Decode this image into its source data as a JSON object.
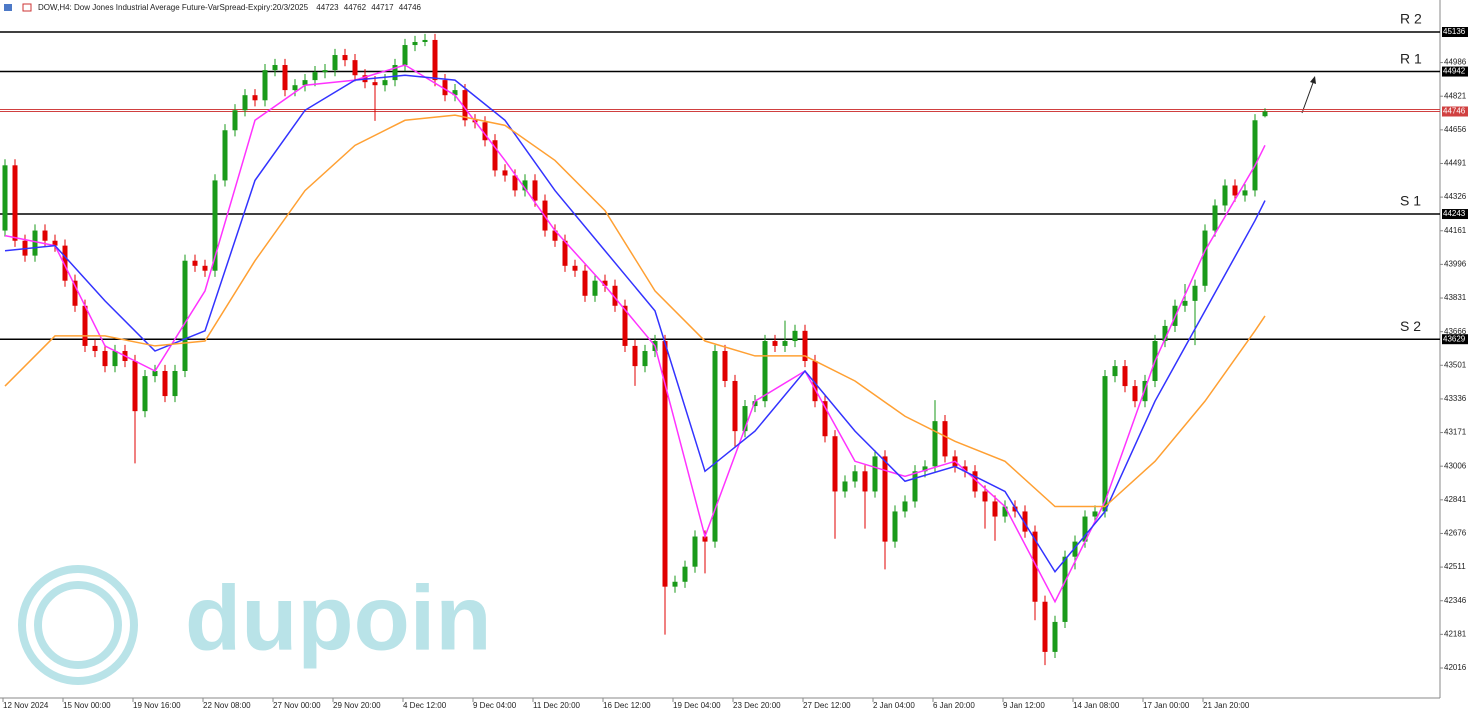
{
  "chart_data": {
    "type": "candlestick",
    "title": "DOW,H4:  Dow Jones Industrial Average Future-VarSpread-Expiry:20/3/2025",
    "watermark": "dupoin",
    "up_color": "#1a9a1a",
    "down_color": "#e00000",
    "ylim": [
      41859,
      45293
    ],
    "yticks": [
      44986,
      44821,
      44656,
      44491,
      44326,
      44161,
      43996,
      43831,
      43666,
      43501,
      43336,
      43171,
      43006,
      42841,
      42676,
      42511,
      42346,
      42181,
      42016
    ],
    "xticks": [
      {
        "value": 0,
        "label": "12 Nov 2024"
      },
      {
        "value": 6,
        "label": "15 Nov 00:00"
      },
      {
        "value": 13,
        "label": "19 Nov 16:00"
      },
      {
        "value": 20,
        "label": "22 Nov 08:00"
      },
      {
        "value": 27,
        "label": "27 Nov 00:00"
      },
      {
        "value": 33,
        "label": "29 Nov 20:00"
      },
      {
        "value": 40,
        "label": "4 Dec 12:00"
      },
      {
        "value": 47,
        "label": "9 Dec 04:00"
      },
      {
        "value": 53,
        "label": "11 Dec 20:00"
      },
      {
        "value": 60,
        "label": "16 Dec 12:00"
      },
      {
        "value": 67,
        "label": "19 Dec 04:00"
      },
      {
        "value": 73,
        "label": "23 Dec 20:00"
      },
      {
        "value": 80,
        "label": "27 Dec 12:00"
      },
      {
        "value": 87,
        "label": "2 Jan 04:00"
      },
      {
        "value": 93,
        "label": "6 Jan 20:00"
      },
      {
        "value": 100,
        "label": "9 Jan 12:00"
      },
      {
        "value": 107,
        "label": "14 Jan 08:00"
      },
      {
        "value": 114,
        "label": "17 Jan 00:00"
      },
      {
        "value": 120,
        "label": "21 Jan 20:00"
      }
    ],
    "levels": [
      {
        "name": "R 2",
        "value": 45136
      },
      {
        "name": "R 1",
        "value": 44942
      },
      {
        "name": "S 1",
        "value": 44243
      },
      {
        "name": "S 2",
        "value": 43629
      }
    ],
    "level_color": "#000000",
    "price_line_color": "#d04040",
    "candles": [
      [
        44162,
        44512,
        44132,
        44482
      ],
      [
        44482,
        44512,
        44082,
        44112
      ],
      [
        44112,
        44142,
        44009,
        44039
      ],
      [
        44039,
        44192,
        44009,
        44162
      ],
      [
        44162,
        44192,
        44082,
        44112
      ],
      [
        44112,
        44142,
        44058,
        44088
      ],
      [
        44088,
        44118,
        43886,
        43916
      ],
      [
        43916,
        43946,
        43763,
        43793
      ],
      [
        43793,
        43823,
        43566,
        43596
      ],
      [
        43596,
        43626,
        43541,
        43571
      ],
      [
        43571,
        43601,
        43467,
        43497
      ],
      [
        43497,
        43601,
        43467,
        43571
      ],
      [
        43571,
        43601,
        43492,
        43522
      ],
      [
        43522,
        43552,
        43020,
        43276
      ],
      [
        43276,
        43478,
        43246,
        43448
      ],
      [
        43448,
        43503,
        43418,
        43473
      ],
      [
        43473,
        43503,
        43320,
        43350
      ],
      [
        43350,
        43503,
        43320,
        43473
      ],
      [
        43473,
        44044,
        43443,
        44014
      ],
      [
        44014,
        44044,
        43959,
        43989
      ],
      [
        43989,
        44019,
        43935,
        43965
      ],
      [
        43965,
        44438,
        43935,
        44408
      ],
      [
        44408,
        44684,
        44378,
        44654
      ],
      [
        44654,
        44782,
        44624,
        44752
      ],
      [
        44752,
        44856,
        44722,
        44826
      ],
      [
        44826,
        44856,
        44771,
        44801
      ],
      [
        44801,
        44979,
        44771,
        44949
      ],
      [
        44949,
        45004,
        44919,
        44974
      ],
      [
        44974,
        45004,
        44821,
        44851
      ],
      [
        44851,
        44905,
        44821,
        44875
      ],
      [
        44875,
        44930,
        44845,
        44900
      ],
      [
        44900,
        44969,
        44870,
        44939
      ],
      [
        44939,
        44979,
        44909,
        44949
      ],
      [
        44949,
        45053,
        44919,
        45023
      ],
      [
        45023,
        45053,
        44968,
        44998
      ],
      [
        44998,
        45028,
        44894,
        44924
      ],
      [
        44924,
        44954,
        44860,
        44890
      ],
      [
        44890,
        44920,
        44700,
        44875
      ],
      [
        44875,
        44930,
        44845,
        44900
      ],
      [
        44900,
        45004,
        44870,
        44974
      ],
      [
        44974,
        45102,
        44944,
        45072
      ],
      [
        45072,
        45117,
        45042,
        45087
      ],
      [
        45087,
        45127,
        45067,
        45097
      ],
      [
        45097,
        45127,
        44870,
        44900
      ],
      [
        44900,
        44930,
        44796,
        44826
      ],
      [
        44826,
        44881,
        44796,
        44851
      ],
      [
        44851,
        44881,
        44673,
        44703
      ],
      [
        44703,
        44733,
        44663,
        44693
      ],
      [
        44693,
        44723,
        44575,
        44605
      ],
      [
        44605,
        44635,
        44427,
        44457
      ],
      [
        44457,
        44487,
        44402,
        44432
      ],
      [
        44432,
        44462,
        44329,
        44359
      ],
      [
        44359,
        44438,
        44329,
        44408
      ],
      [
        44408,
        44438,
        44279,
        44309
      ],
      [
        44309,
        44339,
        44132,
        44162
      ],
      [
        44162,
        44192,
        44082,
        44112
      ],
      [
        44112,
        44142,
        43959,
        43989
      ],
      [
        43989,
        44019,
        43935,
        43965
      ],
      [
        43965,
        43995,
        43812,
        43842
      ],
      [
        43842,
        43946,
        43812,
        43916
      ],
      [
        43916,
        43946,
        43861,
        43891
      ],
      [
        43891,
        43921,
        43763,
        43793
      ],
      [
        43793,
        43823,
        43566,
        43596
      ],
      [
        43596,
        43626,
        43400,
        43497
      ],
      [
        43497,
        43601,
        43467,
        43571
      ],
      [
        43571,
        43650,
        43541,
        43620
      ],
      [
        43620,
        43650,
        42180,
        42415
      ],
      [
        42415,
        42469,
        42385,
        42439
      ],
      [
        42439,
        42543,
        42409,
        42513
      ],
      [
        42513,
        42691,
        42483,
        42661
      ],
      [
        42661,
        42691,
        42480,
        42636
      ],
      [
        42636,
        43601,
        42606,
        43571
      ],
      [
        43571,
        43601,
        43394,
        43424
      ],
      [
        43424,
        43454,
        43100,
        43178
      ],
      [
        43178,
        43331,
        43148,
        43301
      ],
      [
        43301,
        43355,
        43271,
        43325
      ],
      [
        43325,
        43650,
        43295,
        43620
      ],
      [
        43620,
        43650,
        43566,
        43596
      ],
      [
        43596,
        43720,
        43566,
        43620
      ],
      [
        43620,
        43700,
        43590,
        43670
      ],
      [
        43670,
        43700,
        43492,
        43522
      ],
      [
        43522,
        43552,
        43295,
        43325
      ],
      [
        43325,
        43355,
        43123,
        43153
      ],
      [
        43153,
        43183,
        42650,
        42882
      ],
      [
        42882,
        42961,
        42852,
        42931
      ],
      [
        42931,
        43011,
        42901,
        42981
      ],
      [
        42981,
        43011,
        42700,
        42882
      ],
      [
        42882,
        43084,
        42852,
        43054
      ],
      [
        43054,
        43084,
        42500,
        42636
      ],
      [
        42636,
        42814,
        42606,
        42784
      ],
      [
        42784,
        42863,
        42754,
        42833
      ],
      [
        42833,
        43011,
        42803,
        42981
      ],
      [
        42981,
        43035,
        42951,
        43005
      ],
      [
        43005,
        43330,
        42975,
        43227
      ],
      [
        43227,
        43257,
        43024,
        43054
      ],
      [
        43054,
        43084,
        42975,
        43005
      ],
      [
        43005,
        43035,
        42951,
        42981
      ],
      [
        42981,
        43011,
        42852,
        42882
      ],
      [
        42882,
        42912,
        42700,
        42833
      ],
      [
        42833,
        42863,
        42640,
        42759
      ],
      [
        42759,
        42838,
        42729,
        42808
      ],
      [
        42808,
        42838,
        42754,
        42784
      ],
      [
        42784,
        42814,
        42655,
        42685
      ],
      [
        42685,
        42715,
        42250,
        42341
      ],
      [
        42341,
        42371,
        42030,
        42095
      ],
      [
        42095,
        42272,
        42065,
        42242
      ],
      [
        42242,
        42592,
        42212,
        42562
      ],
      [
        42562,
        42666,
        42500,
        42636
      ],
      [
        42636,
        42789,
        42606,
        42759
      ],
      [
        42759,
        42814,
        42729,
        42784
      ],
      [
        42784,
        43478,
        42754,
        43448
      ],
      [
        43448,
        43527,
        43418,
        43497
      ],
      [
        43497,
        43527,
        43369,
        43399
      ],
      [
        43399,
        43429,
        43295,
        43325
      ],
      [
        43325,
        43454,
        43295,
        43424
      ],
      [
        43424,
        43650,
        43394,
        43620
      ],
      [
        43620,
        43724,
        43590,
        43694
      ],
      [
        43694,
        43823,
        43664,
        43793
      ],
      [
        43793,
        43900,
        43763,
        43817
      ],
      [
        43817,
        43921,
        43600,
        43891
      ],
      [
        43891,
        44192,
        43861,
        44162
      ],
      [
        44162,
        44315,
        44132,
        44285
      ],
      [
        44285,
        44413,
        44255,
        44383
      ],
      [
        44383,
        44413,
        44304,
        44334
      ],
      [
        44334,
        44389,
        44304,
        44359
      ],
      [
        44359,
        44733,
        44329,
        44703
      ],
      [
        44723,
        44762,
        44717,
        44746
      ]
    ],
    "series": [
      {
        "color": "#ff33ff",
        "x": [
          0,
          5,
          10,
          15,
          20,
          25,
          30,
          35,
          40,
          45,
          50,
          55,
          60,
          65,
          70,
          75,
          80,
          85,
          90,
          95,
          100,
          105,
          110,
          115,
          120,
          125,
          126
        ],
        "values": [
          44137,
          44088,
          43596,
          43473,
          43866,
          44703,
          44875,
          44900,
          44974,
          44826,
          44506,
          44162,
          43891,
          43596,
          42661,
          43325,
          43473,
          43030,
          42956,
          43030,
          42808,
          42341,
          42833,
          43522,
          44063,
          44481,
          44580
        ]
      },
      {
        "color": "#3333ff",
        "x": [
          0,
          5,
          10,
          15,
          20,
          25,
          30,
          35,
          40,
          45,
          50,
          55,
          60,
          65,
          70,
          75,
          80,
          85,
          90,
          95,
          100,
          105,
          110,
          115,
          120,
          125,
          126
        ],
        "values": [
          44063,
          44088,
          43817,
          43571,
          43670,
          44408,
          44752,
          44900,
          44924,
          44900,
          44703,
          44358,
          44063,
          43768,
          42981,
          43178,
          43473,
          43178,
          42932,
          43005,
          42882,
          42488,
          42784,
          43325,
          43768,
          44211,
          44309
        ]
      },
      {
        "color": "#ffa033",
        "x": [
          0,
          5,
          10,
          15,
          20,
          25,
          30,
          35,
          40,
          45,
          50,
          55,
          60,
          65,
          70,
          75,
          80,
          85,
          90,
          95,
          100,
          105,
          110,
          115,
          120,
          125,
          126
        ],
        "values": [
          43399,
          43645,
          43645,
          43596,
          43620,
          44014,
          44358,
          44580,
          44703,
          44728,
          44678,
          44506,
          44260,
          43866,
          43620,
          43547,
          43547,
          43424,
          43251,
          43128,
          43030,
          42808,
          42808,
          43030,
          43325,
          43670,
          43743
        ]
      }
    ]
  }
}
